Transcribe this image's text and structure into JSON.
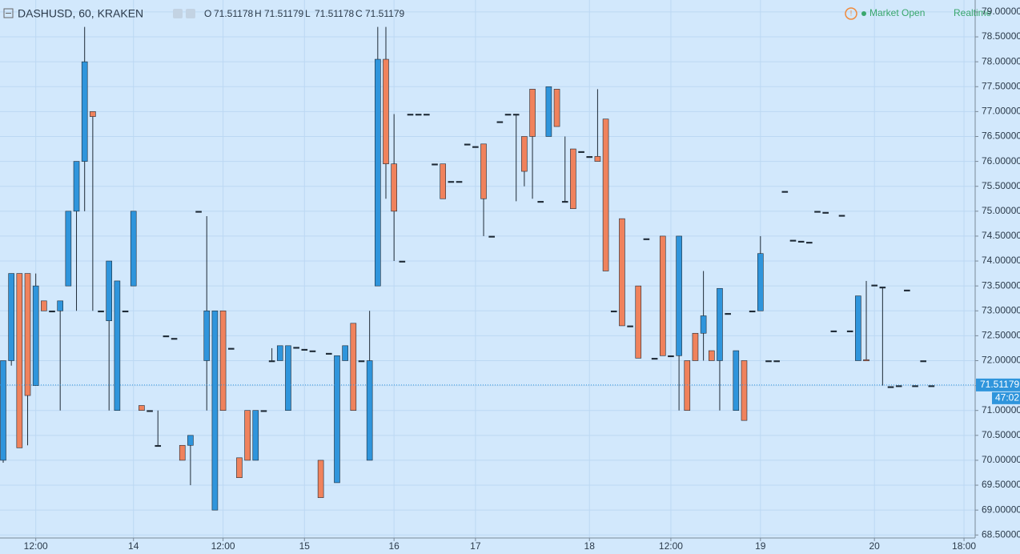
{
  "chart_data": {
    "type": "candlestick",
    "title": "DASHUSD, 60, KRAKEN",
    "ohlc_legend": [
      {
        "key": "O",
        "value": "71.51178"
      },
      {
        "key": "H",
        "value": "71.51179"
      },
      {
        "key": "L",
        "value": "71.51178"
      },
      {
        "key": "C",
        "value": "71.51179"
      }
    ],
    "status": "Market Open",
    "mode": "Realtime",
    "last_price": {
      "value": 71.51179,
      "label": "71.51179"
    },
    "countdown": "47:02",
    "up_color": "#2f95dc",
    "down_color": "#f0825c",
    "grid": true,
    "ylim": [
      68.44,
      79.24
    ],
    "yticks": [
      {
        "value": 68.5,
        "label": "68.50000"
      },
      {
        "value": 69,
        "label": "69.00000"
      },
      {
        "value": 69.5,
        "label": "69.50000"
      },
      {
        "value": 70,
        "label": "70.00000"
      },
      {
        "value": 70.5,
        "label": "70.50000"
      },
      {
        "value": 71,
        "label": "71.00000"
      },
      {
        "value": 71.5,
        "label": "71.50000"
      },
      {
        "value": 72,
        "label": "72.00000"
      },
      {
        "value": 72.5,
        "label": "72.50000"
      },
      {
        "value": 73,
        "label": "73.00000"
      },
      {
        "value": 73.5,
        "label": "73.50000"
      },
      {
        "value": 74,
        "label": "74.00000"
      },
      {
        "value": 74.5,
        "label": "74.50000"
      },
      {
        "value": 75,
        "label": "75.00000"
      },
      {
        "value": 75.5,
        "label": "75.50000"
      },
      {
        "value": 76,
        "label": "76.00000"
      },
      {
        "value": 76.5,
        "label": "76.50000"
      },
      {
        "value": 77,
        "label": "77.00000"
      },
      {
        "value": 77.5,
        "label": "77.50000"
      },
      {
        "value": 78,
        "label": "78.00000"
      },
      {
        "value": 78.5,
        "label": "78.50000"
      },
      {
        "value": 79,
        "label": "79.00000"
      }
    ],
    "categories": [
      null,
      null,
      null,
      null,
      "12:00",
      null,
      null,
      null,
      null,
      null,
      null,
      null,
      null,
      null,
      null,
      null,
      "14",
      null,
      null,
      null,
      null,
      null,
      null,
      null,
      null,
      null,
      null,
      "12:00",
      null,
      null,
      null,
      null,
      null,
      null,
      null,
      null,
      null,
      "15",
      null,
      null,
      null,
      null,
      null,
      null,
      null,
      null,
      null,
      null,
      "16",
      null,
      null,
      null,
      null,
      null,
      null,
      null,
      null,
      null,
      "17",
      null,
      null,
      null,
      null,
      null,
      null,
      null,
      null,
      null,
      null,
      null,
      null,
      null,
      "18",
      null,
      null,
      null,
      null,
      null,
      null,
      null,
      null,
      null,
      "12:00",
      null,
      null,
      null,
      null,
      null,
      null,
      null,
      null,
      null,
      null,
      "19",
      null,
      null,
      null,
      null,
      null,
      null,
      null,
      null,
      null,
      null,
      null,
      null,
      null,
      "20",
      null,
      null,
      null,
      null,
      null,
      null,
      null,
      null,
      null,
      null,
      "18:00"
    ],
    "open": [
      70.0,
      72.0,
      73.75,
      73.75,
      71.5,
      73.2,
      73,
      73.0,
      73.5,
      75.0,
      76.0,
      77.0,
      73,
      72.8,
      71.0,
      73,
      73.5,
      71.1,
      71,
      70.3,
      72.5,
      72.45,
      70.3,
      70.3,
      75,
      72.0,
      69.0,
      73.0,
      72.25,
      70.05,
      71,
      70,
      71,
      72.0,
      72,
      71,
      72.27,
      72.23,
      72.2,
      70.0,
      72.15,
      69.55,
      72.0,
      72.75,
      72.0,
      70.0,
      73.5,
      78.05,
      75.95,
      74.0,
      76.95,
      76.95,
      76.95,
      75.95,
      75.95,
      75.6,
      75.6,
      76.35,
      76.3,
      76.35,
      74.5,
      76.8,
      76.95,
      76.95,
      76.5,
      77.45,
      75.2,
      76.5,
      77.45,
      75.2,
      76.25,
      76.2,
      76.1,
      76.1,
      76.85,
      73.0,
      74.85,
      72.7,
      73.5,
      74.45,
      72.05,
      74.5,
      72.1,
      72.1,
      72.0,
      72.55,
      72.55,
      72.2,
      72.0,
      72.95,
      71.0,
      72.0,
      73.0,
      73.0,
      72.0,
      72.0,
      75.4,
      74.42,
      74.4,
      74.38,
      75.0,
      74.98,
      72.6,
      74.92,
      72.6,
      72.0,
      72.02,
      73.52,
      73.48,
      71.48,
      71.5,
      73.42,
      71.5,
      72.0,
      71.5,
      null,
      null,
      null,
      null
    ],
    "high": [
      72.0,
      73.75,
      73.75,
      73.75,
      73.75,
      73.2,
      73,
      73.2,
      75.0,
      76.0,
      78.7,
      77.0,
      73,
      74.0,
      73.6,
      73,
      75,
      71.1,
      71,
      71.0,
      72.5,
      72.45,
      70.3,
      70.5,
      75,
      74.9,
      73.0,
      73.0,
      72.25,
      70.05,
      71,
      71,
      71,
      72.25,
      72.3,
      72.3,
      72.27,
      72.23,
      72.2,
      70.0,
      72.15,
      72.1,
      72.3,
      72.75,
      72.0,
      73.0,
      78.7,
      78.7,
      76.95,
      74.0,
      76.95,
      76.95,
      76.95,
      75.95,
      75.95,
      75.6,
      75.6,
      76.35,
      76.3,
      76.35,
      74.5,
      76.8,
      76.95,
      76.95,
      76.5,
      77.45,
      75.2,
      77.5,
      77.45,
      76.5,
      76.25,
      76.2,
      76.1,
      77.45,
      76.85,
      73.0,
      74.85,
      72.7,
      73.5,
      74.45,
      72.05,
      74.5,
      72.1,
      74.5,
      72.0,
      72.55,
      73.8,
      72.2,
      73.45,
      72.95,
      72.2,
      72.0,
      73.0,
      74.5,
      72.0,
      72.0,
      75.4,
      74.42,
      74.4,
      74.38,
      75.0,
      74.98,
      72.6,
      74.92,
      72.6,
      73.3,
      73.6,
      73.52,
      73.48,
      71.48,
      71.5,
      73.42,
      71.5,
      72.0,
      71.5,
      null,
      null,
      null,
      null
    ],
    "low": [
      69.95,
      71.9,
      70.25,
      70.3,
      71.5,
      73.0,
      73,
      71.0,
      73.5,
      73.0,
      75.0,
      73.0,
      73,
      71.0,
      71.0,
      73,
      73.5,
      71.0,
      71,
      70.3,
      72.5,
      72.45,
      70.0,
      69.5,
      75,
      71.0,
      69.0,
      71.0,
      72.25,
      69.65,
      70,
      70,
      71,
      72.0,
      72,
      71,
      72.27,
      72.23,
      72.2,
      69.25,
      72.15,
      69.55,
      72.0,
      71.0,
      72.0,
      70.0,
      73.5,
      75.25,
      74.0,
      74.0,
      76.95,
      76.95,
      76.95,
      75.95,
      75.25,
      75.6,
      75.6,
      76.35,
      76.3,
      74.5,
      74.5,
      76.8,
      76.95,
      75.2,
      75.5,
      75.25,
      75.2,
      76.5,
      76.7,
      75.2,
      75.05,
      76.2,
      76.1,
      76.0,
      73.8,
      73.0,
      72.7,
      72.7,
      72.05,
      74.45,
      72.05,
      72.1,
      72.1,
      71.0,
      71.0,
      72.0,
      72.0,
      72.0,
      71.0,
      72.95,
      71.0,
      70.8,
      73.0,
      73.0,
      72.0,
      72.0,
      75.4,
      74.42,
      74.4,
      74.38,
      75.0,
      74.98,
      72.6,
      74.92,
      72.6,
      72.0,
      72.0,
      73.52,
      71.5,
      71.48,
      71.5,
      73.42,
      71.5,
      72.0,
      71.5,
      null,
      null,
      null,
      null
    ],
    "close": [
      72.0,
      73.75,
      70.25,
      71.3,
      73.5,
      73.0,
      73,
      73.2,
      75.0,
      76.0,
      78.0,
      76.9,
      73,
      74.0,
      73.6,
      73,
      75,
      71.0,
      71,
      70.3,
      72.5,
      72.45,
      70.0,
      70.5,
      75,
      73.0,
      73.0,
      71.0,
      72.25,
      69.65,
      70,
      71,
      71,
      72.0,
      72.3,
      72.3,
      72.27,
      72.23,
      72.2,
      69.25,
      72.15,
      72.1,
      72.3,
      71.0,
      72.0,
      72.0,
      78.05,
      75.95,
      75.0,
      74.0,
      76.95,
      76.95,
      76.95,
      75.95,
      75.25,
      75.6,
      75.6,
      76.35,
      76.3,
      75.25,
      74.5,
      76.8,
      76.95,
      76.95,
      75.8,
      76.5,
      75.2,
      77.5,
      76.7,
      75.2,
      75.05,
      76.2,
      76.1,
      76.0,
      73.8,
      73.0,
      72.7,
      72.7,
      72.05,
      74.45,
      72.05,
      72.1,
      72.1,
      74.5,
      71.0,
      72.0,
      72.9,
      72.0,
      73.45,
      72.95,
      72.2,
      70.8,
      73.0,
      74.15,
      72.0,
      72.0,
      75.4,
      74.42,
      74.4,
      74.38,
      75.0,
      74.98,
      72.6,
      74.92,
      72.6,
      73.3,
      72.0,
      73.52,
      73.48,
      71.48,
      71.5,
      73.42,
      71.5,
      72.0,
      71.5,
      null,
      null,
      null,
      null
    ]
  }
}
